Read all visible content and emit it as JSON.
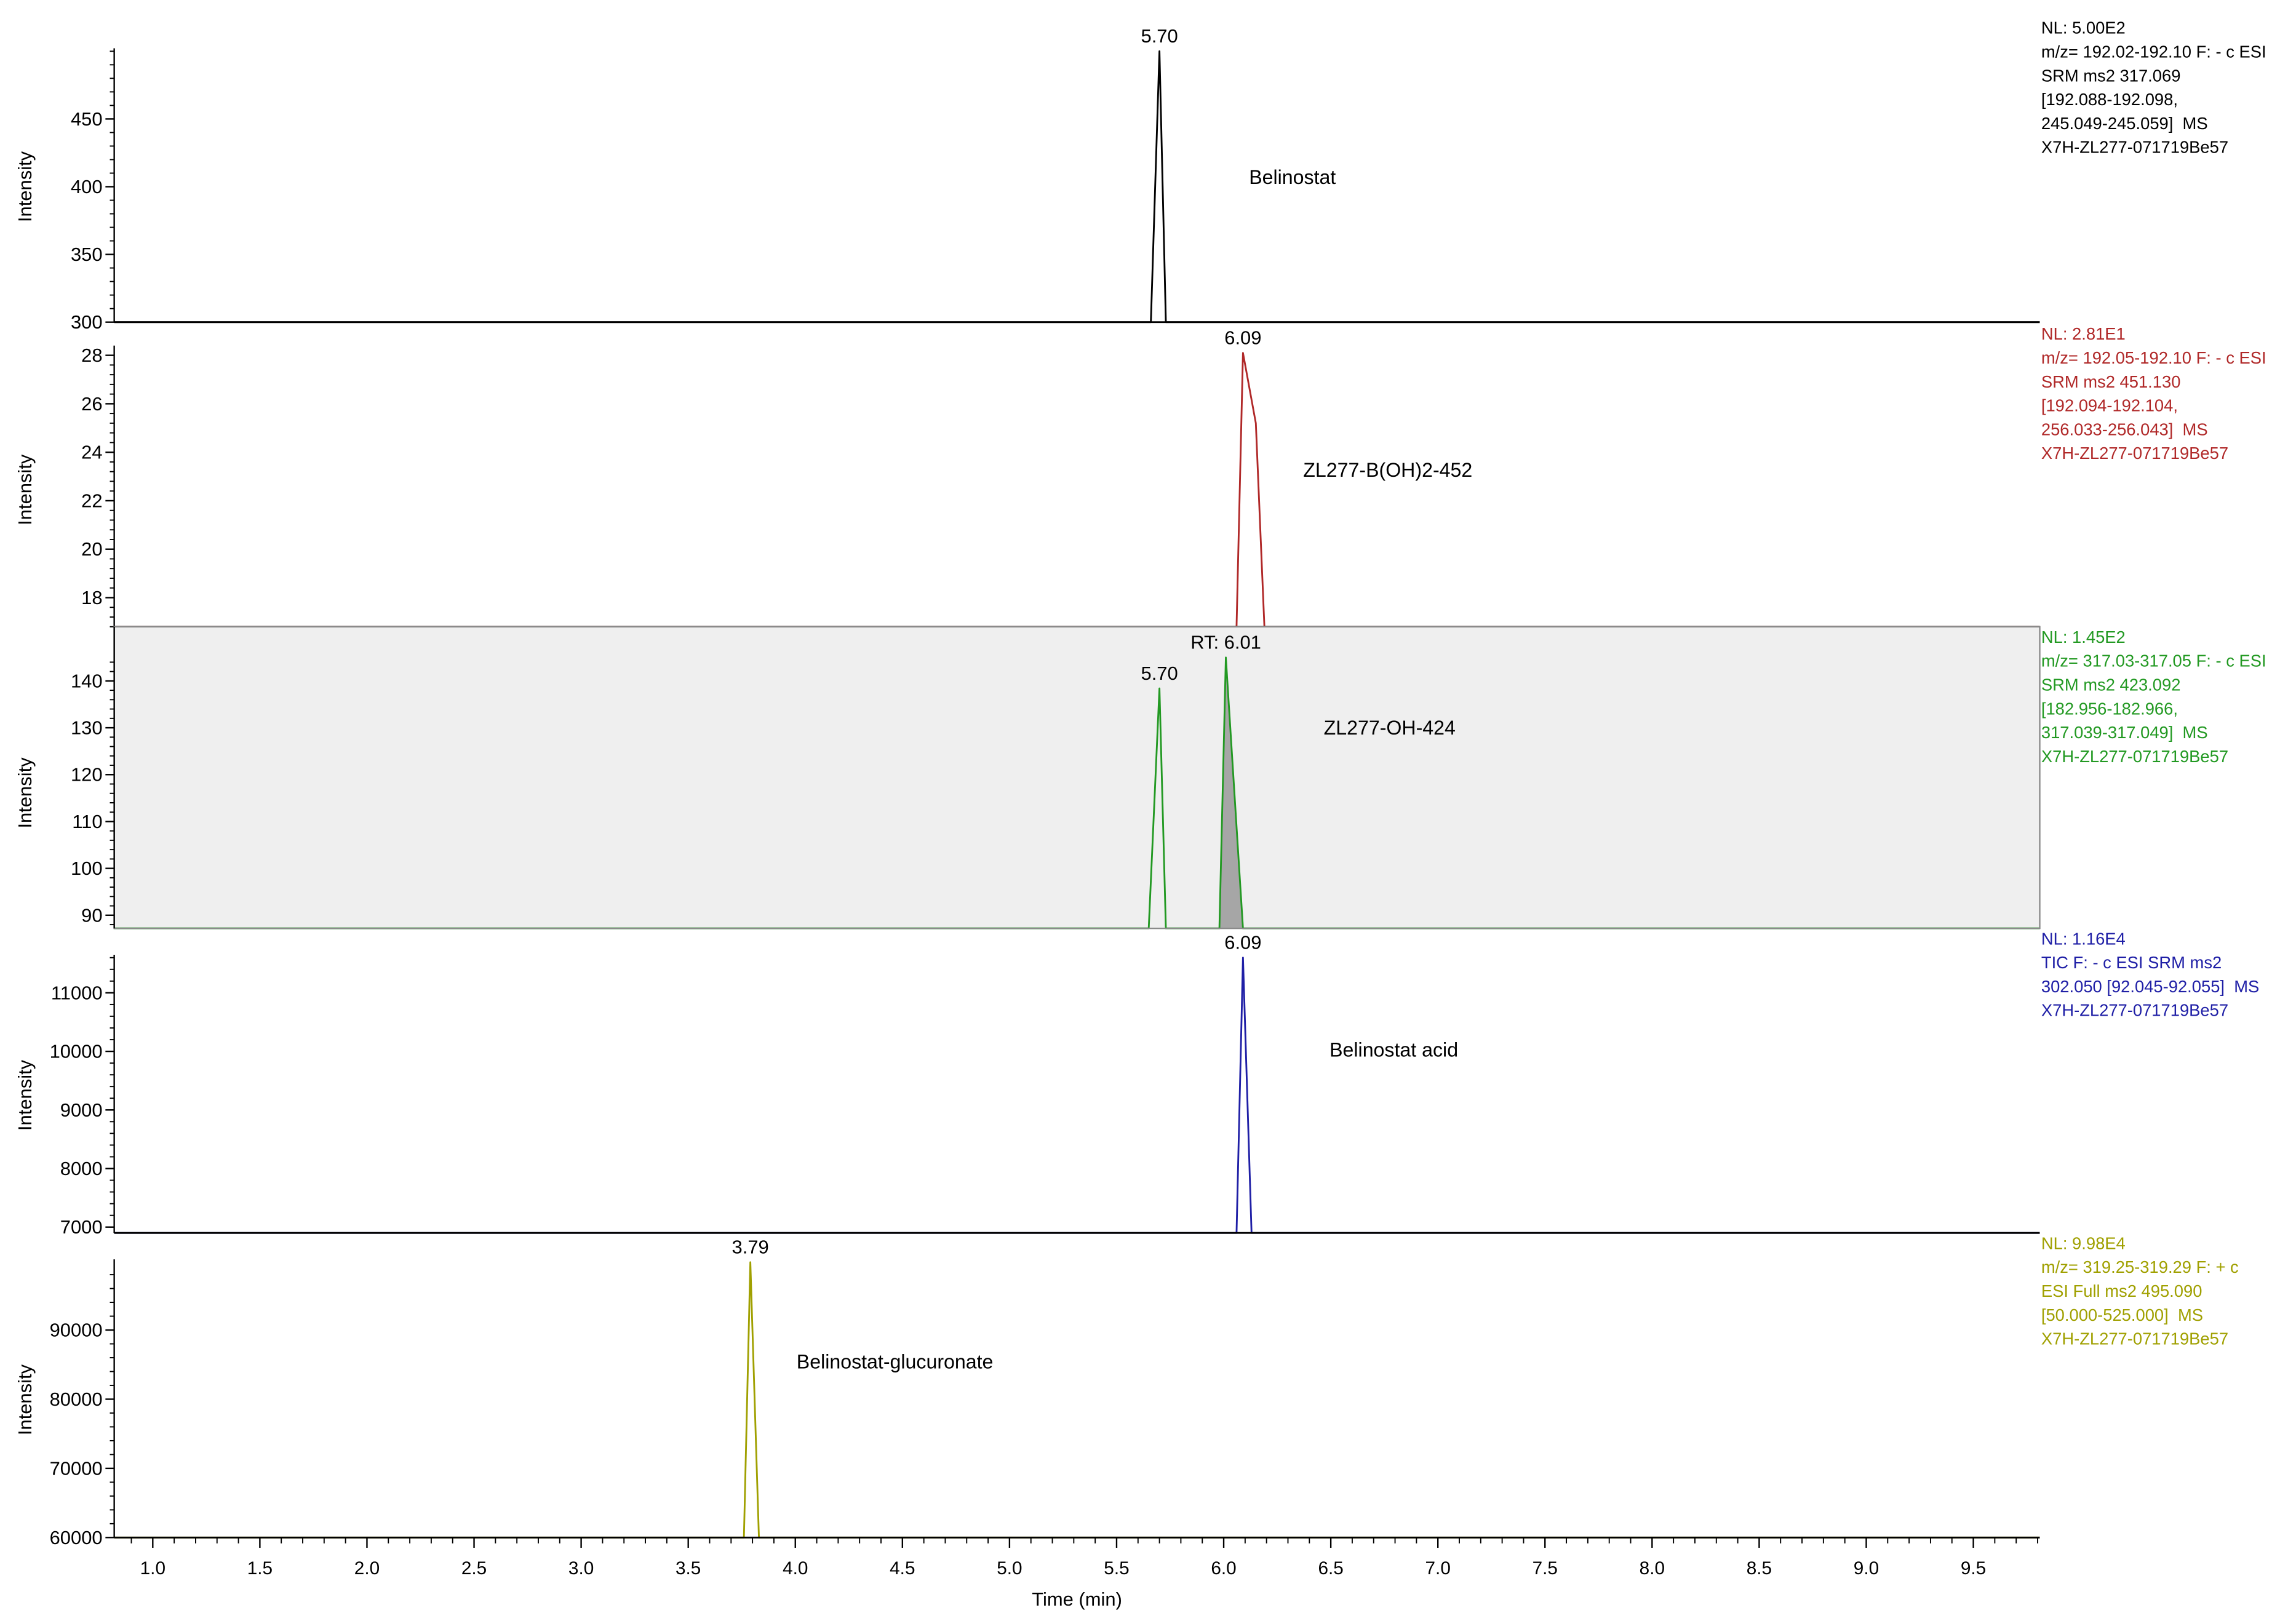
{
  "chart_data": [
    {
      "type": "line",
      "ylabel": "Intensity",
      "xlim": [
        0.82,
        9.81
      ],
      "ylim": [
        300,
        500
      ],
      "yticks": [
        300,
        350,
        400,
        450
      ],
      "series": [
        {
          "name": "Belinostat",
          "color": "#000000",
          "x": [
            0.82,
            5.66,
            5.7,
            5.73,
            9.81
          ],
          "y": [
            300,
            300,
            500,
            300,
            300
          ]
        }
      ],
      "peaks": [
        {
          "rt": 5.7,
          "intensity": 500,
          "text": "5.70"
        }
      ],
      "info": [
        "NL: 5.00E2",
        "m/z= 192.02-192.10 F: - c ESI",
        "SRM ms2 317.069",
        "[192.088-192.098,",
        "245.049-245.059]  MS",
        "X7H-ZL277-071719Be57"
      ]
    },
    {
      "type": "line",
      "ylabel": "Intensity",
      "xlim": [
        0.82,
        9.81
      ],
      "ylim": [
        16.8,
        28.1
      ],
      "yticks": [
        18,
        20,
        22,
        24,
        26,
        28
      ],
      "series": [
        {
          "name": "ZL277-B(OH)2-452",
          "color": "#b02828",
          "x": [
            0.82,
            6.06,
            6.09,
            6.15,
            6.19,
            9.81
          ],
          "y": [
            16.8,
            16.8,
            28.1,
            25.2,
            16.8,
            16.8
          ]
        }
      ],
      "peaks": [
        {
          "rt": 6.09,
          "intensity": 28.1,
          "text": "6.09"
        }
      ],
      "info": [
        "NL: 2.81E1",
        "m/z= 192.05-192.10 F: - c ESI",
        "SRM ms2 451.130",
        "[192.094-192.104,",
        "256.033-256.043]  MS",
        "X7H-ZL277-071719Be57"
      ]
    },
    {
      "type": "line",
      "ylabel": "Intensity",
      "selected": true,
      "xlim": [
        0.82,
        9.81
      ],
      "ylim": [
        87.2,
        145
      ],
      "yticks": [
        90,
        100,
        110,
        120,
        130,
        140
      ],
      "series": [
        {
          "name": "ZL277-OH-424",
          "color": "#229922",
          "x": [
            0.82,
            5.65,
            5.7,
            5.73,
            5.98,
            6.01,
            6.09,
            9.81
          ],
          "y": [
            87.2,
            87.2,
            138.4,
            87.2,
            87.2,
            145,
            87.2,
            87.2
          ]
        }
      ],
      "filled_range": [
        5.98,
        6.09
      ],
      "peaks": [
        {
          "rt": 5.7,
          "intensity": 138.4,
          "text": "5.70"
        },
        {
          "rt": 6.01,
          "intensity": 145,
          "text": "RT: 6.01"
        }
      ],
      "info": [
        "NL: 1.45E2",
        "m/z= 317.03-317.05 F: - c ESI",
        "SRM ms2 423.092",
        "[182.956-182.966,",
        "317.039-317.049]  MS",
        "X7H-ZL277-071719Be57"
      ]
    },
    {
      "type": "line",
      "ylabel": "Intensity",
      "xlim": [
        0.82,
        9.81
      ],
      "ylim": [
        6900,
        11600
      ],
      "yticks": [
        7000,
        8000,
        9000,
        10000,
        11000
      ],
      "series": [
        {
          "name": "Belinostat acid",
          "color": "#1f1fa6",
          "x": [
            0.82,
            6.06,
            6.09,
            6.13,
            9.81
          ],
          "y": [
            6900,
            6900,
            11600,
            6900,
            6900
          ]
        }
      ],
      "peaks": [
        {
          "rt": 6.09,
          "intensity": 11600,
          "text": "6.09"
        }
      ],
      "info": [
        "NL: 1.16E4",
        "TIC F: - c ESI SRM ms2",
        "302.050 [92.045-92.055]  MS",
        "X7H-ZL277-071719Be57"
      ]
    },
    {
      "type": "line",
      "ylabel": "Intensity",
      "xlabel": "Time (min)",
      "xlim": [
        0.82,
        9.81
      ],
      "ylim": [
        60000,
        99800
      ],
      "yticks": [
        60000,
        70000,
        80000,
        90000
      ],
      "xticks": [
        "1.0",
        "1.5",
        "2.0",
        "2.5",
        "3.0",
        "3.5",
        "4.0",
        "4.5",
        "5.0",
        "5.5",
        "6.0",
        "6.5",
        "7.0",
        "7.5",
        "8.0",
        "8.5",
        "9.0",
        "9.5"
      ],
      "series": [
        {
          "name": "Belinostat-glucuronate",
          "color": "#a0a000",
          "x": [
            0.82,
            3.76,
            3.79,
            3.83,
            9.81
          ],
          "y": [
            60000,
            60000,
            99800,
            60000,
            60000
          ]
        }
      ],
      "peaks": [
        {
          "rt": 3.79,
          "intensity": 99800,
          "text": "3.79"
        }
      ],
      "info": [
        "NL: 9.98E4",
        "m/z= 319.25-319.29 F: + c",
        "ESI Full ms2 495.090",
        "[50.000-525.000]  MS",
        "X7H-ZL277-071719Be57"
      ]
    }
  ]
}
